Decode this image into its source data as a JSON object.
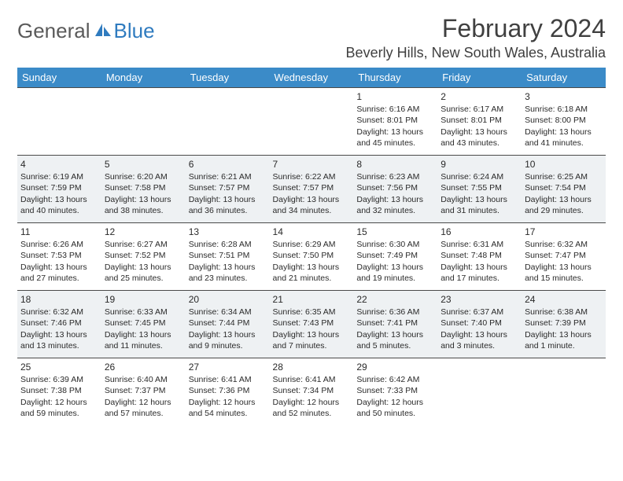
{
  "brand": {
    "general": "General",
    "blue": "Blue"
  },
  "title": "February 2024",
  "location": "Beverly Hills, New South Wales, Australia",
  "colors": {
    "header_bg": "#3b8bc8",
    "row_alt_bg": "#eef1f3",
    "border": "#4a4a4a",
    "title_color": "#404040",
    "brand_gray": "#5a5a5a",
    "brand_blue": "#2f7bbf"
  },
  "weekdays": [
    "Sunday",
    "Monday",
    "Tuesday",
    "Wednesday",
    "Thursday",
    "Friday",
    "Saturday"
  ],
  "weeks": [
    [
      null,
      null,
      null,
      null,
      {
        "n": "1",
        "sr": "Sunrise: 6:16 AM",
        "ss": "Sunset: 8:01 PM",
        "dl": "Daylight: 13 hours and 45 minutes."
      },
      {
        "n": "2",
        "sr": "Sunrise: 6:17 AM",
        "ss": "Sunset: 8:01 PM",
        "dl": "Daylight: 13 hours and 43 minutes."
      },
      {
        "n": "3",
        "sr": "Sunrise: 6:18 AM",
        "ss": "Sunset: 8:00 PM",
        "dl": "Daylight: 13 hours and 41 minutes."
      }
    ],
    [
      {
        "n": "4",
        "sr": "Sunrise: 6:19 AM",
        "ss": "Sunset: 7:59 PM",
        "dl": "Daylight: 13 hours and 40 minutes."
      },
      {
        "n": "5",
        "sr": "Sunrise: 6:20 AM",
        "ss": "Sunset: 7:58 PM",
        "dl": "Daylight: 13 hours and 38 minutes."
      },
      {
        "n": "6",
        "sr": "Sunrise: 6:21 AM",
        "ss": "Sunset: 7:57 PM",
        "dl": "Daylight: 13 hours and 36 minutes."
      },
      {
        "n": "7",
        "sr": "Sunrise: 6:22 AM",
        "ss": "Sunset: 7:57 PM",
        "dl": "Daylight: 13 hours and 34 minutes."
      },
      {
        "n": "8",
        "sr": "Sunrise: 6:23 AM",
        "ss": "Sunset: 7:56 PM",
        "dl": "Daylight: 13 hours and 32 minutes."
      },
      {
        "n": "9",
        "sr": "Sunrise: 6:24 AM",
        "ss": "Sunset: 7:55 PM",
        "dl": "Daylight: 13 hours and 31 minutes."
      },
      {
        "n": "10",
        "sr": "Sunrise: 6:25 AM",
        "ss": "Sunset: 7:54 PM",
        "dl": "Daylight: 13 hours and 29 minutes."
      }
    ],
    [
      {
        "n": "11",
        "sr": "Sunrise: 6:26 AM",
        "ss": "Sunset: 7:53 PM",
        "dl": "Daylight: 13 hours and 27 minutes."
      },
      {
        "n": "12",
        "sr": "Sunrise: 6:27 AM",
        "ss": "Sunset: 7:52 PM",
        "dl": "Daylight: 13 hours and 25 minutes."
      },
      {
        "n": "13",
        "sr": "Sunrise: 6:28 AM",
        "ss": "Sunset: 7:51 PM",
        "dl": "Daylight: 13 hours and 23 minutes."
      },
      {
        "n": "14",
        "sr": "Sunrise: 6:29 AM",
        "ss": "Sunset: 7:50 PM",
        "dl": "Daylight: 13 hours and 21 minutes."
      },
      {
        "n": "15",
        "sr": "Sunrise: 6:30 AM",
        "ss": "Sunset: 7:49 PM",
        "dl": "Daylight: 13 hours and 19 minutes."
      },
      {
        "n": "16",
        "sr": "Sunrise: 6:31 AM",
        "ss": "Sunset: 7:48 PM",
        "dl": "Daylight: 13 hours and 17 minutes."
      },
      {
        "n": "17",
        "sr": "Sunrise: 6:32 AM",
        "ss": "Sunset: 7:47 PM",
        "dl": "Daylight: 13 hours and 15 minutes."
      }
    ],
    [
      {
        "n": "18",
        "sr": "Sunrise: 6:32 AM",
        "ss": "Sunset: 7:46 PM",
        "dl": "Daylight: 13 hours and 13 minutes."
      },
      {
        "n": "19",
        "sr": "Sunrise: 6:33 AM",
        "ss": "Sunset: 7:45 PM",
        "dl": "Daylight: 13 hours and 11 minutes."
      },
      {
        "n": "20",
        "sr": "Sunrise: 6:34 AM",
        "ss": "Sunset: 7:44 PM",
        "dl": "Daylight: 13 hours and 9 minutes."
      },
      {
        "n": "21",
        "sr": "Sunrise: 6:35 AM",
        "ss": "Sunset: 7:43 PM",
        "dl": "Daylight: 13 hours and 7 minutes."
      },
      {
        "n": "22",
        "sr": "Sunrise: 6:36 AM",
        "ss": "Sunset: 7:41 PM",
        "dl": "Daylight: 13 hours and 5 minutes."
      },
      {
        "n": "23",
        "sr": "Sunrise: 6:37 AM",
        "ss": "Sunset: 7:40 PM",
        "dl": "Daylight: 13 hours and 3 minutes."
      },
      {
        "n": "24",
        "sr": "Sunrise: 6:38 AM",
        "ss": "Sunset: 7:39 PM",
        "dl": "Daylight: 13 hours and 1 minute."
      }
    ],
    [
      {
        "n": "25",
        "sr": "Sunrise: 6:39 AM",
        "ss": "Sunset: 7:38 PM",
        "dl": "Daylight: 12 hours and 59 minutes."
      },
      {
        "n": "26",
        "sr": "Sunrise: 6:40 AM",
        "ss": "Sunset: 7:37 PM",
        "dl": "Daylight: 12 hours and 57 minutes."
      },
      {
        "n": "27",
        "sr": "Sunrise: 6:41 AM",
        "ss": "Sunset: 7:36 PM",
        "dl": "Daylight: 12 hours and 54 minutes."
      },
      {
        "n": "28",
        "sr": "Sunrise: 6:41 AM",
        "ss": "Sunset: 7:34 PM",
        "dl": "Daylight: 12 hours and 52 minutes."
      },
      {
        "n": "29",
        "sr": "Sunrise: 6:42 AM",
        "ss": "Sunset: 7:33 PM",
        "dl": "Daylight: 12 hours and 50 minutes."
      },
      null,
      null
    ]
  ]
}
